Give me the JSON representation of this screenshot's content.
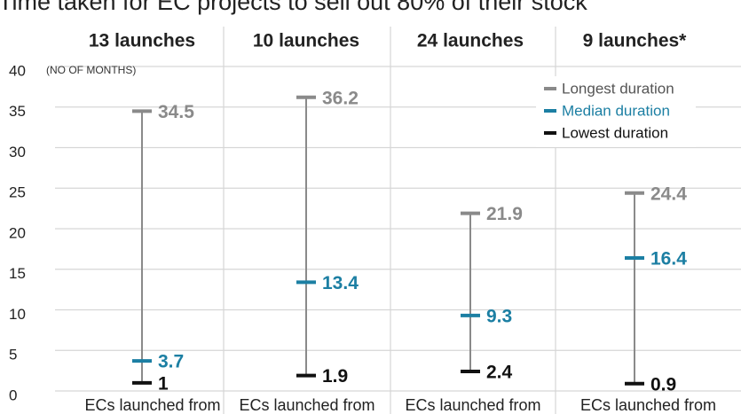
{
  "chart_data": {
    "type": "range",
    "title": "Time taken for EC projects to sell out 80% of their stock",
    "y_label": "(NO OF MONTHS)",
    "group_labels": [
      "13 launches",
      "10 launches",
      "24 launches",
      "9 launches*"
    ],
    "categories": [
      "ECs launched from",
      "ECs launched from",
      "ECs launched from",
      "ECs launched from"
    ],
    "series": [
      {
        "name": "Longest duration",
        "color": "#8a8a8a",
        "values": [
          34.5,
          36.2,
          21.9,
          24.4
        ]
      },
      {
        "name": "Median duration",
        "color": "#1c7fa3",
        "values": [
          3.7,
          13.4,
          9.3,
          16.4
        ]
      },
      {
        "name": "Lowest duration",
        "color": "#111111",
        "values": [
          1,
          1.9,
          2.4,
          0.9
        ]
      }
    ],
    "ylim": [
      0,
      40
    ],
    "yticks": [
      0,
      5,
      10,
      15,
      20,
      25,
      30,
      35,
      40
    ],
    "grid": true,
    "legend": "top-right"
  }
}
